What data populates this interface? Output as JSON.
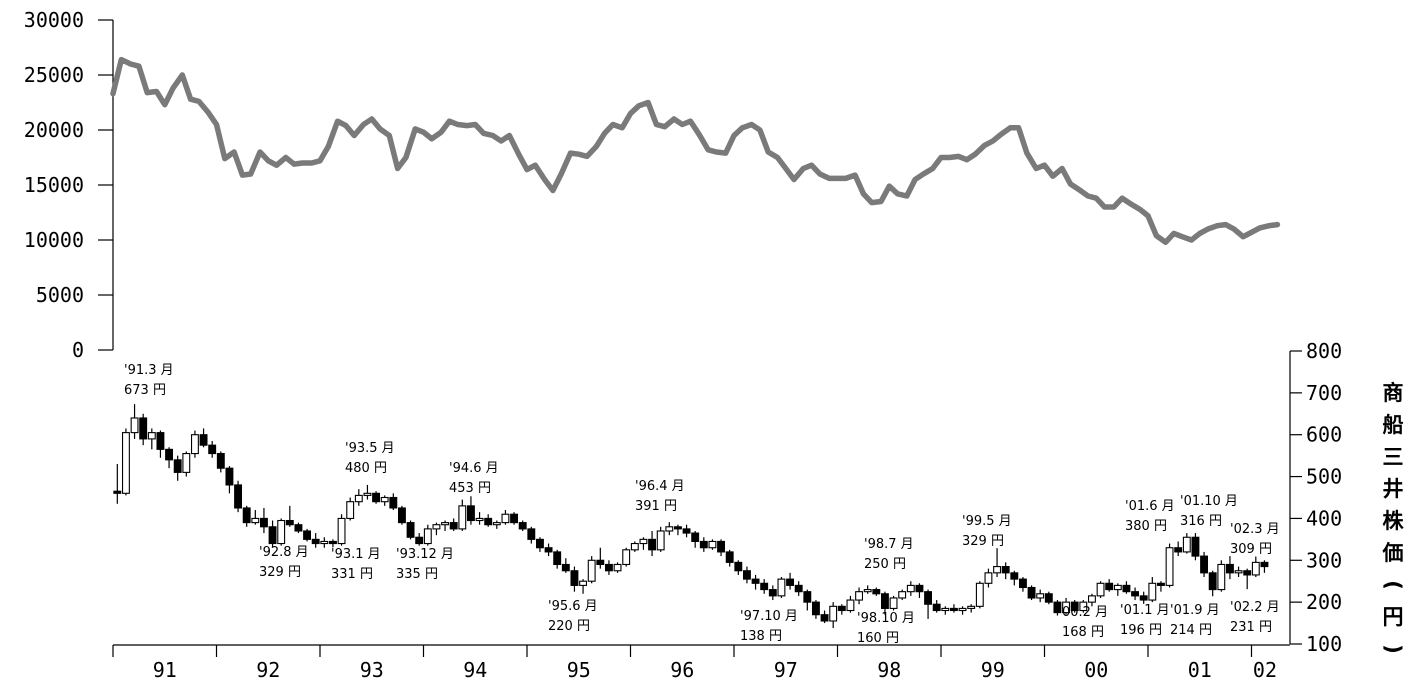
{
  "chart_data": [
    {
      "type": "line",
      "series": [
        {
          "color": "#7a7a7a",
          "x": [
            1991.0,
            1991.08,
            1991.17,
            1991.25,
            1991.33,
            1991.42,
            1991.5,
            1991.58,
            1991.67,
            1991.75,
            1991.83,
            1991.92,
            1992.0,
            1992.08,
            1992.17,
            1992.25,
            1992.33,
            1992.42,
            1992.5,
            1992.58,
            1992.67,
            1992.75,
            1992.83,
            1992.92,
            1993.0,
            1993.08,
            1993.17,
            1993.25,
            1993.33,
            1993.42,
            1993.5,
            1993.58,
            1993.67,
            1993.75,
            1993.83,
            1993.92,
            1994.0,
            1994.08,
            1994.17,
            1994.25,
            1994.33,
            1994.42,
            1994.5,
            1994.58,
            1994.67,
            1994.75,
            1994.83,
            1994.92,
            1995.0,
            1995.08,
            1995.17,
            1995.25,
            1995.33,
            1995.42,
            1995.5,
            1995.58,
            1995.67,
            1995.75,
            1995.83,
            1995.92,
            1996.0,
            1996.08,
            1996.17,
            1996.25,
            1996.33,
            1996.42,
            1996.5,
            1996.58,
            1996.67,
            1996.75,
            1996.83,
            1996.92,
            1997.0,
            1997.08,
            1997.17,
            1997.25,
            1997.33,
            1997.42,
            1997.5,
            1997.58,
            1997.67,
            1997.75,
            1997.83,
            1997.92,
            1998.0,
            1998.08,
            1998.17,
            1998.25,
            1998.33,
            1998.42,
            1998.5,
            1998.58,
            1998.67,
            1998.75,
            1998.83,
            1998.92,
            1999.0,
            1999.08,
            1999.17,
            1999.25,
            1999.33,
            1999.42,
            1999.5,
            1999.58,
            1999.67,
            1999.75,
            1999.83,
            1999.92,
            2000.0,
            2000.08,
            2000.17,
            2000.25,
            2000.33,
            2000.42,
            2000.5,
            2000.58,
            2000.67,
            2000.75,
            2000.83,
            2000.92,
            2001.0,
            2001.08,
            2001.17,
            2001.25,
            2001.33,
            2001.42,
            2001.5,
            2001.58,
            2001.67,
            2001.75,
            2001.83,
            2001.92,
            2002.0,
            2002.08,
            2002.17,
            2002.25
          ],
          "values": [
            23300,
            26400,
            26000,
            25800,
            23400,
            23500,
            22300,
            23800,
            25000,
            22800,
            22600,
            21600,
            20500,
            17400,
            18000,
            15900,
            16000,
            18000,
            17200,
            16800,
            17500,
            16900,
            17000,
            17000,
            17200,
            18500,
            20800,
            20400,
            19500,
            20500,
            21000,
            20100,
            19500,
            16500,
            17500,
            20100,
            19800,
            19200,
            19800,
            20800,
            20500,
            20400,
            20500,
            19700,
            19500,
            19000,
            19500,
            17800,
            16400,
            16800,
            15500,
            14500,
            16000,
            17900,
            17800,
            17600,
            18500,
            19700,
            20500,
            20200,
            21500,
            22200,
            22500,
            20500,
            20300,
            21000,
            20500,
            20800,
            19500,
            18200,
            18000,
            17900,
            19500,
            20200,
            20500,
            20000,
            18000,
            17500,
            16500,
            15500,
            16500,
            16800,
            16000,
            15600,
            15600,
            15600,
            15900,
            14200,
            13400,
            13500,
            14900,
            14200,
            14000,
            15500,
            16000,
            16500,
            17500,
            17500,
            17600,
            17300,
            17800,
            18600,
            19000,
            19600,
            20200,
            20200,
            17900,
            16500,
            16800,
            15800,
            16500,
            15100,
            14600,
            14000,
            13800,
            13000,
            13000,
            13800,
            13300,
            12800,
            12200,
            10400,
            9800,
            10600,
            10300,
            10000,
            10600,
            11000,
            11300,
            11400,
            11000,
            10300,
            10700,
            11100,
            11300,
            11400
          ]
        }
      ],
      "ylim": [
        0,
        30000
      ],
      "yticks": [
        0,
        5000,
        10000,
        15000,
        20000,
        25000,
        30000
      ],
      "y_tick_labels": [
        "0",
        "5000",
        "10000",
        "15000",
        "20000",
        "25000",
        "30000"
      ],
      "y_axis_side": "left",
      "grid": false
    },
    {
      "type": "candlestick",
      "ylabel": "商船三井株価(円)",
      "ylim": [
        100,
        800
      ],
      "yticks": [
        100,
        200,
        300,
        400,
        500,
        600,
        700,
        800
      ],
      "y_tick_labels": [
        "100",
        "200",
        "300",
        "400",
        "500",
        "600",
        "700",
        "800"
      ],
      "y_axis_side": "right",
      "grid": false,
      "x_tick_labels": [
        "91",
        "92",
        "93",
        "94",
        "95",
        "96",
        "97",
        "98",
        "99",
        "00",
        "01",
        "02"
      ],
      "period": "monthly",
      "start": "1991-01",
      "ohlc": [
        [
          465,
          530,
          435,
          460
        ],
        [
          460,
          615,
          455,
          605
        ],
        [
          605,
          673,
          590,
          640
        ],
        [
          640,
          650,
          575,
          590
        ],
        [
          590,
          615,
          565,
          605
        ],
        [
          605,
          610,
          545,
          565
        ],
        [
          565,
          570,
          520,
          540
        ],
        [
          540,
          550,
          490,
          510
        ],
        [
          510,
          560,
          500,
          555
        ],
        [
          555,
          610,
          545,
          600
        ],
        [
          600,
          615,
          570,
          575
        ],
        [
          575,
          585,
          545,
          555
        ],
        [
          555,
          560,
          510,
          520
        ],
        [
          520,
          525,
          460,
          480
        ],
        [
          480,
          490,
          415,
          425
        ],
        [
          425,
          430,
          380,
          390
        ],
        [
          390,
          420,
          385,
          400
        ],
        [
          400,
          425,
          365,
          380
        ],
        [
          380,
          395,
          330,
          340
        ],
        [
          340,
          400,
          335,
          395
        ],
        [
          395,
          430,
          380,
          385
        ],
        [
          385,
          390,
          365,
          370
        ],
        [
          370,
          375,
          345,
          350
        ],
        [
          350,
          365,
          330,
          340
        ],
        [
          340,
          355,
          330,
          345
        ],
        [
          345,
          350,
          331,
          340
        ],
        [
          340,
          410,
          335,
          400
        ],
        [
          400,
          450,
          395,
          440
        ],
        [
          440,
          470,
          430,
          455
        ],
        [
          455,
          480,
          445,
          460
        ],
        [
          460,
          465,
          435,
          440
        ],
        [
          440,
          455,
          430,
          450
        ],
        [
          450,
          460,
          420,
          425
        ],
        [
          425,
          430,
          385,
          390
        ],
        [
          390,
          395,
          350,
          355
        ],
        [
          355,
          365,
          335,
          340
        ],
        [
          340,
          385,
          335,
          375
        ],
        [
          375,
          390,
          360,
          385
        ],
        [
          385,
          395,
          370,
          390
        ],
        [
          390,
          400,
          370,
          375
        ],
        [
          375,
          445,
          370,
          430
        ],
        [
          430,
          453,
          385,
          395
        ],
        [
          395,
          415,
          385,
          400
        ],
        [
          400,
          410,
          380,
          385
        ],
        [
          385,
          395,
          375,
          390
        ],
        [
          390,
          420,
          385,
          410
        ],
        [
          410,
          415,
          385,
          390
        ],
        [
          390,
          395,
          370,
          375
        ],
        [
          375,
          380,
          340,
          350
        ],
        [
          350,
          355,
          320,
          330
        ],
        [
          330,
          340,
          310,
          320
        ],
        [
          320,
          325,
          280,
          290
        ],
        [
          290,
          305,
          270,
          275
        ],
        [
          275,
          285,
          225,
          240
        ],
        [
          240,
          255,
          220,
          250
        ],
        [
          250,
          310,
          245,
          300
        ],
        [
          300,
          330,
          280,
          290
        ],
        [
          290,
          300,
          265,
          275
        ],
        [
          275,
          295,
          270,
          290
        ],
        [
          290,
          330,
          285,
          325
        ],
        [
          325,
          345,
          320,
          340
        ],
        [
          340,
          355,
          325,
          350
        ],
        [
          350,
          370,
          310,
          325
        ],
        [
          325,
          380,
          320,
          370
        ],
        [
          370,
          391,
          360,
          380
        ],
        [
          380,
          385,
          360,
          375
        ],
        [
          375,
          385,
          355,
          365
        ],
        [
          365,
          370,
          330,
          345
        ],
        [
          345,
          355,
          320,
          330
        ],
        [
          330,
          350,
          325,
          345
        ],
        [
          345,
          350,
          310,
          320
        ],
        [
          320,
          325,
          285,
          295
        ],
        [
          295,
          300,
          265,
          275
        ],
        [
          275,
          285,
          245,
          255
        ],
        [
          255,
          265,
          230,
          245
        ],
        [
          245,
          255,
          220,
          230
        ],
        [
          230,
          240,
          205,
          215
        ],
        [
          215,
          260,
          210,
          255
        ],
        [
          255,
          270,
          230,
          240
        ],
        [
          240,
          250,
          215,
          225
        ],
        [
          225,
          230,
          180,
          200
        ],
        [
          200,
          205,
          160,
          170
        ],
        [
          170,
          180,
          150,
          155
        ],
        [
          155,
          200,
          138,
          190
        ],
        [
          190,
          195,
          170,
          180
        ],
        [
          180,
          215,
          175,
          205
        ],
        [
          205,
          235,
          195,
          225
        ],
        [
          225,
          240,
          220,
          230
        ],
        [
          230,
          235,
          215,
          220
        ],
        [
          220,
          225,
          170,
          185
        ],
        [
          185,
          215,
          180,
          210
        ],
        [
          210,
          230,
          205,
          225
        ],
        [
          225,
          250,
          215,
          240
        ],
        [
          240,
          245,
          210,
          225
        ],
        [
          225,
          230,
          160,
          195
        ],
        [
          195,
          205,
          175,
          180
        ],
        [
          180,
          190,
          170,
          185
        ],
        [
          185,
          195,
          175,
          180
        ],
        [
          180,
          190,
          170,
          185
        ],
        [
          185,
          195,
          175,
          190
        ],
        [
          190,
          250,
          185,
          245
        ],
        [
          245,
          280,
          235,
          270
        ],
        [
          270,
          329,
          260,
          285
        ],
        [
          285,
          295,
          255,
          270
        ],
        [
          270,
          275,
          240,
          255
        ],
        [
          255,
          260,
          225,
          235
        ],
        [
          235,
          240,
          205,
          210
        ],
        [
          210,
          230,
          200,
          220
        ],
        [
          220,
          225,
          195,
          200
        ],
        [
          200,
          205,
          168,
          175
        ],
        [
          175,
          210,
          170,
          200
        ],
        [
          200,
          205,
          175,
          180
        ],
        [
          180,
          205,
          175,
          200
        ],
        [
          200,
          220,
          190,
          215
        ],
        [
          215,
          250,
          210,
          245
        ],
        [
          245,
          255,
          225,
          230
        ],
        [
          230,
          245,
          215,
          240
        ],
        [
          240,
          250,
          220,
          225
        ],
        [
          225,
          235,
          205,
          215
        ],
        [
          215,
          225,
          196,
          205
        ],
        [
          205,
          260,
          200,
          245
        ],
        [
          245,
          250,
          225,
          240
        ],
        [
          240,
          340,
          235,
          330
        ],
        [
          330,
          345,
          310,
          320
        ],
        [
          320,
          365,
          316,
          355
        ],
        [
          355,
          365,
          300,
          310
        ],
        [
          310,
          320,
          260,
          270
        ],
        [
          270,
          275,
          214,
          230
        ],
        [
          230,
          300,
          225,
          290
        ],
        [
          290,
          310,
          255,
          270
        ],
        [
          270,
          285,
          260,
          275
        ],
        [
          275,
          280,
          231,
          265
        ],
        [
          265,
          309,
          260,
          295
        ],
        [
          295,
          300,
          270,
          285
        ]
      ],
      "annotations": [
        {
          "line1": "'91.3 月",
          "line2": "673 円"
        },
        {
          "line1": "'92.8 月",
          "line2": "329 円"
        },
        {
          "line1": "'93.1 月",
          "line2": "331 円"
        },
        {
          "line1": "'93.5 月",
          "line2": "480 円"
        },
        {
          "line1": "'93.12 月",
          "line2": "335 円"
        },
        {
          "line1": "'94.6 月",
          "line2": "453 円"
        },
        {
          "line1": "'95.6 月",
          "line2": "220 円"
        },
        {
          "line1": "'96.4 月",
          "line2": "391 円"
        },
        {
          "line1": "'97.10 月",
          "line2": "138 円"
        },
        {
          "line1": "'98.7 月",
          "line2": "250 円"
        },
        {
          "line1": "'98.10 月",
          "line2": "160 円"
        },
        {
          "line1": "'99.5 月",
          "line2": "329 円"
        },
        {
          "line1": "00.2 月",
          "line2": "168 円"
        },
        {
          "line1": "'01.1 月",
          "line2": "196 円"
        },
        {
          "line1": "'01.6 月",
          "line2": "380 円"
        },
        {
          "line1": "'01.9 月",
          "line2": "214 円"
        },
        {
          "line1": "'01.10 月",
          "line2": "316 円"
        },
        {
          "line1": "'02.2 月",
          "line2": "231 円"
        },
        {
          "line1": "'02.3 月",
          "line2": "309 円"
        }
      ]
    }
  ]
}
